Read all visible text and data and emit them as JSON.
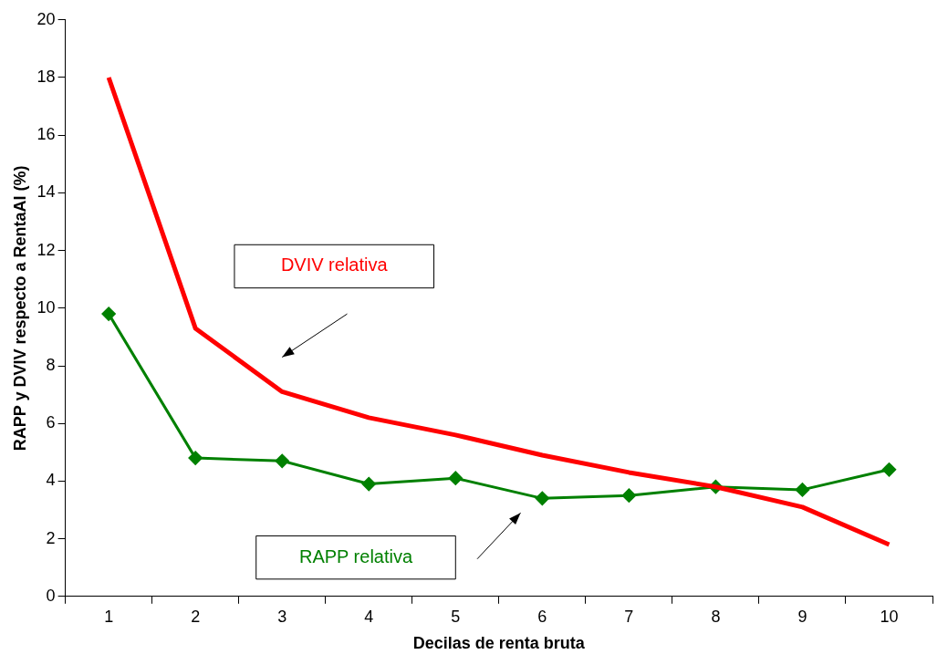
{
  "chart_data": {
    "type": "line",
    "xlabel": "Decilas de renta bruta",
    "ylabel": "RAPP y DVIV respecto a RentaAI (%)",
    "categories": [
      "1",
      "2",
      "3",
      "4",
      "5",
      "6",
      "7",
      "8",
      "9",
      "10"
    ],
    "series": [
      {
        "name": "DVIV relativa",
        "color": "#ff0000",
        "marker": "none",
        "values": [
          18,
          9.3,
          7.1,
          6.2,
          5.6,
          4.9,
          4.3,
          3.8,
          3.1,
          1.8
        ]
      },
      {
        "name": "RAPP relativa",
        "color": "#008000",
        "marker": "diamond",
        "values": [
          9.8,
          4.8,
          4.7,
          3.9,
          4.1,
          3.4,
          3.5,
          3.8,
          3.7,
          4.4
        ]
      }
    ],
    "ylim": [
      0,
      20
    ],
    "yticks": [
      0,
      2,
      4,
      6,
      8,
      10,
      12,
      14,
      16,
      18,
      20
    ],
    "grid": false,
    "legend": false,
    "line_style": "solid"
  }
}
